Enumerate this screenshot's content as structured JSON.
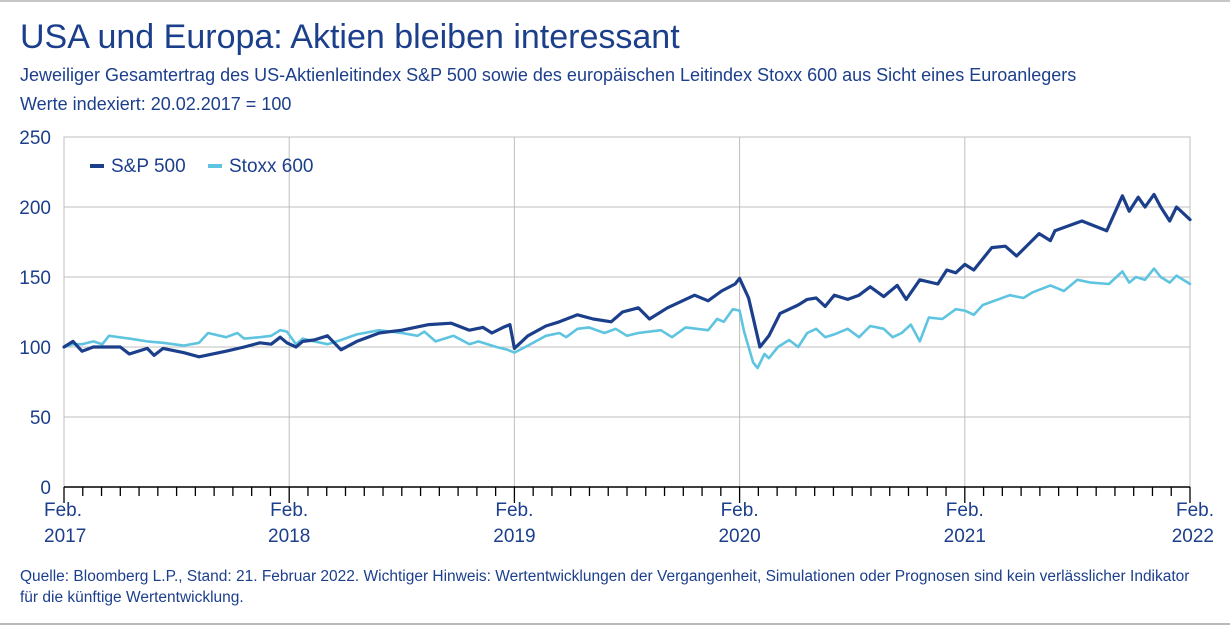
{
  "header": {
    "title": "USA und Europa: Aktien bleiben interessant",
    "subtitle": "Jeweiliger Gesamtertrag des US-Aktienleitindex S&P 500 sowie des europäischen Leitindex Stoxx 600 aus Sicht eines Euroanlegers",
    "subtitle2": "Werte indexiert: 20.02.2017 = 100"
  },
  "footer": {
    "note": "Quelle: Bloomberg L.P., Stand: 21. Februar 2022. Wichtiger Hinweis: Wertentwicklungen der Vergangenheit, Simulationen oder Prognosen sind kein verlässlicher Indikator für die künftige Wertentwicklung."
  },
  "colors": {
    "sp500": "#1c3f8c",
    "stoxx": "#5ec4e0",
    "text": "#1c3f8c",
    "grid": "#bfbfbf"
  },
  "chart_data": {
    "type": "line",
    "xlim": [
      2017.0,
      2022.0
    ],
    "ylim": [
      0,
      250
    ],
    "y_ticks": [
      0,
      50,
      100,
      150,
      200,
      250
    ],
    "x_ticks": [
      {
        "x": 2017,
        "line1": "Feb.",
        "line2": "2017"
      },
      {
        "x": 2018,
        "line1": "Feb.",
        "line2": "2018"
      },
      {
        "x": 2019,
        "line1": "Feb.",
        "line2": "2019"
      },
      {
        "x": 2020,
        "line1": "Feb.",
        "line2": "2020"
      },
      {
        "x": 2021,
        "line1": "Feb.",
        "line2": "2021"
      },
      {
        "x": 2022,
        "line1": "Feb.",
        "line2": "2022"
      }
    ],
    "minor_ticks_per_year": 12,
    "grid": true,
    "legend": "top-left",
    "series": [
      {
        "name": "S&P 500",
        "color": "#1c3f8c",
        "points": [
          [
            2017.0,
            100
          ],
          [
            2017.04,
            104
          ],
          [
            2017.08,
            97
          ],
          [
            2017.13,
            100
          ],
          [
            2017.17,
            100
          ],
          [
            2017.25,
            100
          ],
          [
            2017.29,
            95
          ],
          [
            2017.37,
            99
          ],
          [
            2017.4,
            94
          ],
          [
            2017.44,
            99
          ],
          [
            2017.53,
            96
          ],
          [
            2017.6,
            93
          ],
          [
            2017.72,
            97
          ],
          [
            2017.8,
            100
          ],
          [
            2017.87,
            103
          ],
          [
            2017.92,
            102
          ],
          [
            2017.96,
            107
          ],
          [
            2017.99,
            103
          ],
          [
            2018.03,
            100
          ],
          [
            2018.06,
            104
          ],
          [
            2018.11,
            105
          ],
          [
            2018.17,
            108
          ],
          [
            2018.23,
            98
          ],
          [
            2018.3,
            104
          ],
          [
            2018.4,
            110
          ],
          [
            2018.5,
            112
          ],
          [
            2018.62,
            116
          ],
          [
            2018.72,
            117
          ],
          [
            2018.8,
            112
          ],
          [
            2018.86,
            114
          ],
          [
            2018.9,
            110
          ],
          [
            2018.95,
            114
          ],
          [
            2018.98,
            116
          ],
          [
            2019.0,
            99
          ],
          [
            2019.06,
            108
          ],
          [
            2019.14,
            115
          ],
          [
            2019.2,
            118
          ],
          [
            2019.28,
            123
          ],
          [
            2019.35,
            120
          ],
          [
            2019.43,
            118
          ],
          [
            2019.48,
            125
          ],
          [
            2019.55,
            128
          ],
          [
            2019.6,
            120
          ],
          [
            2019.68,
            128
          ],
          [
            2019.8,
            137
          ],
          [
            2019.86,
            133
          ],
          [
            2019.92,
            140
          ],
          [
            2019.98,
            145
          ],
          [
            2020.0,
            149
          ],
          [
            2020.04,
            135
          ],
          [
            2020.09,
            100
          ],
          [
            2020.13,
            108
          ],
          [
            2020.18,
            124
          ],
          [
            2020.26,
            130
          ],
          [
            2020.3,
            134
          ],
          [
            2020.34,
            135
          ],
          [
            2020.38,
            129
          ],
          [
            2020.42,
            137
          ],
          [
            2020.48,
            134
          ],
          [
            2020.53,
            137
          ],
          [
            2020.58,
            143
          ],
          [
            2020.64,
            136
          ],
          [
            2020.7,
            144
          ],
          [
            2020.74,
            134
          ],
          [
            2020.8,
            148
          ],
          [
            2020.88,
            145
          ],
          [
            2020.92,
            155
          ],
          [
            2020.96,
            153
          ],
          [
            2021.0,
            159
          ],
          [
            2021.04,
            155
          ],
          [
            2021.12,
            171
          ],
          [
            2021.18,
            172
          ],
          [
            2021.23,
            165
          ],
          [
            2021.33,
            181
          ],
          [
            2021.38,
            176
          ],
          [
            2021.4,
            183
          ],
          [
            2021.52,
            190
          ],
          [
            2021.63,
            183
          ],
          [
            2021.7,
            208
          ],
          [
            2021.73,
            197
          ],
          [
            2021.77,
            207
          ],
          [
            2021.8,
            200
          ],
          [
            2021.84,
            209
          ],
          [
            2021.87,
            200
          ],
          [
            2021.91,
            190
          ],
          [
            2021.94,
            200
          ],
          [
            2022.0,
            191
          ]
        ]
      },
      {
        "name": "Stoxx 600",
        "color": "#5ec4e0",
        "points": [
          [
            2017.0,
            100
          ],
          [
            2017.04,
            102
          ],
          [
            2017.08,
            102
          ],
          [
            2017.13,
            104
          ],
          [
            2017.17,
            102
          ],
          [
            2017.2,
            108
          ],
          [
            2017.29,
            106
          ],
          [
            2017.37,
            104
          ],
          [
            2017.44,
            103
          ],
          [
            2017.53,
            101
          ],
          [
            2017.6,
            103
          ],
          [
            2017.64,
            110
          ],
          [
            2017.72,
            107
          ],
          [
            2017.77,
            110
          ],
          [
            2017.8,
            106
          ],
          [
            2017.87,
            107
          ],
          [
            2017.92,
            108
          ],
          [
            2017.96,
            112
          ],
          [
            2017.99,
            111
          ],
          [
            2018.03,
            102
          ],
          [
            2018.06,
            106
          ],
          [
            2018.11,
            104
          ],
          [
            2018.17,
            102
          ],
          [
            2018.23,
            105
          ],
          [
            2018.3,
            109
          ],
          [
            2018.4,
            112
          ],
          [
            2018.5,
            110
          ],
          [
            2018.57,
            108
          ],
          [
            2018.6,
            111
          ],
          [
            2018.65,
            104
          ],
          [
            2018.73,
            108
          ],
          [
            2018.8,
            102
          ],
          [
            2018.84,
            104
          ],
          [
            2018.92,
            100
          ],
          [
            2018.97,
            98
          ],
          [
            2019.0,
            96
          ],
          [
            2019.06,
            101
          ],
          [
            2019.14,
            108
          ],
          [
            2019.2,
            110
          ],
          [
            2019.23,
            107
          ],
          [
            2019.28,
            113
          ],
          [
            2019.33,
            114
          ],
          [
            2019.4,
            110
          ],
          [
            2019.45,
            113
          ],
          [
            2019.5,
            108
          ],
          [
            2019.55,
            110
          ],
          [
            2019.65,
            112
          ],
          [
            2019.7,
            107
          ],
          [
            2019.76,
            114
          ],
          [
            2019.86,
            112
          ],
          [
            2019.9,
            120
          ],
          [
            2019.93,
            118
          ],
          [
            2019.97,
            127
          ],
          [
            2020.0,
            126
          ],
          [
            2020.02,
            111
          ],
          [
            2020.06,
            89
          ],
          [
            2020.08,
            85
          ],
          [
            2020.11,
            95
          ],
          [
            2020.13,
            92
          ],
          [
            2020.17,
            100
          ],
          [
            2020.22,
            105
          ],
          [
            2020.26,
            100
          ],
          [
            2020.3,
            110
          ],
          [
            2020.34,
            113
          ],
          [
            2020.38,
            107
          ],
          [
            2020.42,
            109
          ],
          [
            2020.48,
            113
          ],
          [
            2020.53,
            107
          ],
          [
            2020.58,
            115
          ],
          [
            2020.64,
            113
          ],
          [
            2020.68,
            107
          ],
          [
            2020.72,
            110
          ],
          [
            2020.76,
            116
          ],
          [
            2020.8,
            104
          ],
          [
            2020.84,
            121
          ],
          [
            2020.9,
            120
          ],
          [
            2020.96,
            127
          ],
          [
            2021.0,
            126
          ],
          [
            2021.04,
            123
          ],
          [
            2021.08,
            130
          ],
          [
            2021.2,
            137
          ],
          [
            2021.26,
            135
          ],
          [
            2021.3,
            139
          ],
          [
            2021.38,
            144
          ],
          [
            2021.44,
            140
          ],
          [
            2021.5,
            148
          ],
          [
            2021.56,
            146
          ],
          [
            2021.64,
            145
          ],
          [
            2021.7,
            154
          ],
          [
            2021.73,
            146
          ],
          [
            2021.76,
            150
          ],
          [
            2021.8,
            148
          ],
          [
            2021.84,
            156
          ],
          [
            2021.87,
            150
          ],
          [
            2021.91,
            146
          ],
          [
            2021.94,
            151
          ],
          [
            2022.0,
            145
          ]
        ]
      }
    ]
  }
}
